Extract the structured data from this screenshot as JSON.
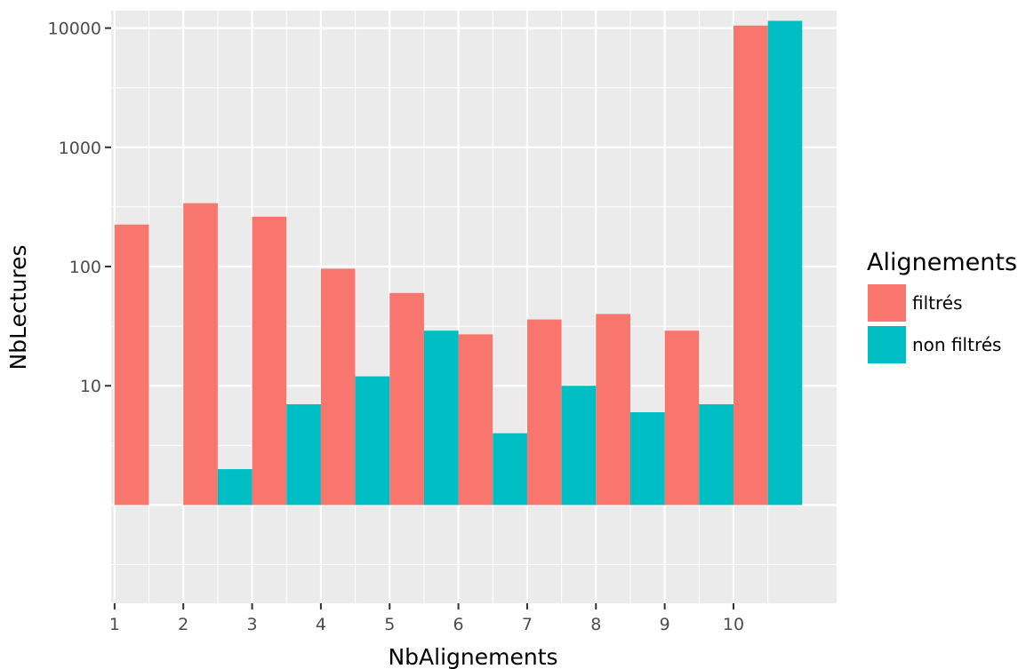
{
  "chart_data": {
    "type": "bar",
    "title": "",
    "xlabel": "NbAlignements",
    "ylabel": "NbLectures",
    "yscale": "log10",
    "ylim": [
      0.15,
      14000
    ],
    "y_ticks": [
      10,
      100,
      1000,
      10000
    ],
    "y_tick_labels": [
      "10",
      "100",
      "1000",
      "10000"
    ],
    "x_ticks": [
      1,
      2,
      3,
      4,
      5,
      6,
      7,
      8,
      9,
      10
    ],
    "x_tick_labels": [
      "1",
      "2",
      "3",
      "4",
      "5",
      "6",
      "7",
      "8",
      "9",
      "10"
    ],
    "xlim": [
      0.95,
      11.5
    ],
    "grid": true,
    "legend_position": "right",
    "legend_title": "Alignements",
    "series": [
      {
        "name": "filtrés",
        "color": "#F8766D",
        "x_start": [
          1,
          2,
          3,
          4,
          5,
          6,
          7,
          8,
          9,
          10
        ],
        "values": [
          225,
          340,
          262,
          96,
          60,
          27,
          36,
          40,
          29,
          10500
        ]
      },
      {
        "name": "non filtrés",
        "color": "#00BFC4",
        "x_start": [
          2.5,
          3.5,
          4.5,
          5.5,
          6.5,
          7.5,
          8.5,
          9.5,
          10.5
        ],
        "values": [
          2,
          7,
          12,
          29,
          4,
          10,
          6,
          7,
          11500
        ]
      }
    ],
    "bar_width": 0.5,
    "bar_base": 1,
    "panel_background": "#EBEBEB",
    "grid_color": "#FFFFFF"
  }
}
